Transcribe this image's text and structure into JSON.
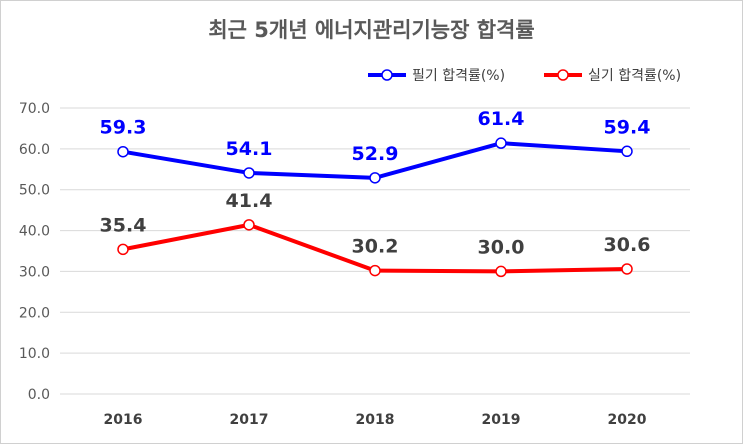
{
  "title": "최근 5개년 에너지관리기능장 합격률",
  "chart_data": {
    "type": "line",
    "title": "최근 5개년 에너지관리기능장 합격률",
    "categories": [
      "2016",
      "2017",
      "2018",
      "2019",
      "2020"
    ],
    "ylim": [
      0,
      70
    ],
    "yticks": [
      "0.0",
      "10.0",
      "20.0",
      "30.0",
      "40.0",
      "50.0",
      "60.0",
      "70.0"
    ],
    "grid": true,
    "legend": "top-right",
    "series": [
      {
        "name": "필기 합격률(%)",
        "color": "#0000ff",
        "values": [
          59.3,
          54.1,
          52.9,
          61.4,
          59.4
        ],
        "labels": [
          "59.3",
          "54.1",
          "52.9",
          "61.4",
          "59.4"
        ]
      },
      {
        "name": "실기 합격률(%)",
        "color": "#ff0000",
        "values": [
          35.4,
          41.4,
          30.2,
          30.0,
          30.6
        ],
        "labels": [
          "35.4",
          "41.4",
          "30.2",
          "30.0",
          "30.6"
        ]
      }
    ]
  }
}
